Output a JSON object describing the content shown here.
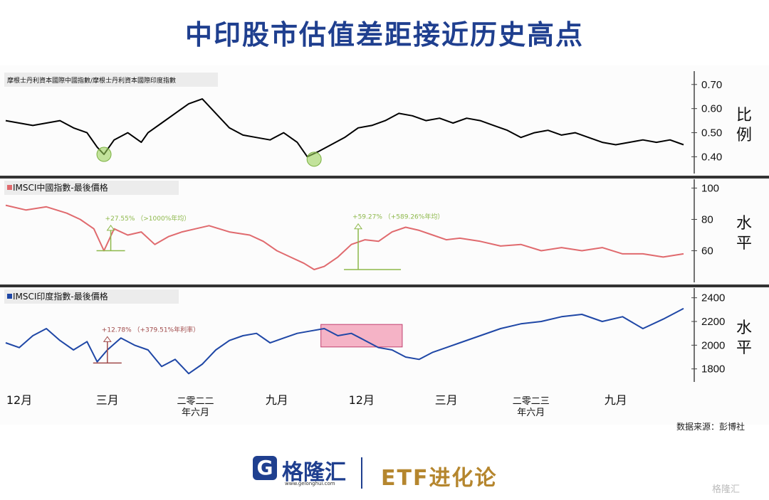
{
  "title": "中印股市估值差距接近历史高点",
  "source": "数据来源：彭博社",
  "footer": {
    "logo_glyph": "G",
    "logo_text": "格隆汇",
    "logo_url": "www.gelonghui.com",
    "etf_text": "ETF进化论",
    "watermark": "格隆汇"
  },
  "colors": {
    "title": "#1f3f8f",
    "ratio": "#000000",
    "china": "#e06a6e",
    "india": "#1f47a6",
    "highlight": "#f2a0b8",
    "marker": "#9bd05a",
    "anno_green": "#8db84a",
    "anno_red": "#a04a4a"
  },
  "chart_data": [
    {
      "type": "line",
      "title": "摩根士丹利資本國際中國指數/摩根士丹利資本國際印度指數",
      "ylabel": "比例",
      "ylim": [
        0.36,
        0.72
      ],
      "yticks": [
        "0.40",
        "0.50",
        "0.60",
        "0.70"
      ],
      "xlim": [
        0,
        100
      ],
      "series": [
        {
          "color": "#000000",
          "x": [
            0,
            4,
            8,
            10,
            12,
            13.5,
            14.5,
            16,
            18,
            20,
            21,
            23,
            25,
            27,
            29,
            31,
            33,
            35,
            37,
            39,
            41,
            43,
            44.5,
            46,
            48,
            50,
            52,
            54,
            56,
            58,
            60,
            62,
            64,
            66,
            68,
            70,
            72,
            74,
            76,
            78,
            80,
            82,
            84,
            86,
            88,
            90,
            92,
            94,
            96,
            98,
            100
          ],
          "y": [
            0.55,
            0.53,
            0.55,
            0.52,
            0.5,
            0.44,
            0.41,
            0.47,
            0.5,
            0.46,
            0.5,
            0.54,
            0.58,
            0.62,
            0.64,
            0.58,
            0.52,
            0.49,
            0.48,
            0.47,
            0.5,
            0.46,
            0.4,
            0.42,
            0.45,
            0.48,
            0.52,
            0.53,
            0.55,
            0.58,
            0.57,
            0.55,
            0.56,
            0.54,
            0.56,
            0.55,
            0.53,
            0.51,
            0.48,
            0.5,
            0.51,
            0.49,
            0.5,
            0.48,
            0.46,
            0.45,
            0.46,
            0.47,
            0.46,
            0.47,
            0.45
          ]
        }
      ],
      "markers": [
        {
          "x": 14.5,
          "y": 0.41
        },
        {
          "x": 45.5,
          "y": 0.39
        }
      ]
    },
    {
      "type": "line",
      "title": "IMSCI中國指數-最後價格",
      "ylabel": "水平",
      "ylim": [
        43,
        102
      ],
      "yticks": [
        "60",
        "80",
        "100"
      ],
      "xlim": [
        0,
        100
      ],
      "series": [
        {
          "color": "#e06a6e",
          "x": [
            0,
            3,
            6,
            9,
            11,
            13,
            14.5,
            16,
            18,
            20,
            22,
            24,
            26,
            28,
            30,
            33,
            36,
            38,
            40,
            42,
            44,
            45.5,
            47,
            49,
            51,
            53,
            55,
            57,
            59,
            61,
            63,
            65,
            67,
            70,
            73,
            76,
            79,
            82,
            85,
            88,
            91,
            94,
            97,
            100
          ],
          "y": [
            89,
            86,
            88,
            84,
            80,
            74,
            60,
            74,
            70,
            72,
            64,
            69,
            72,
            74,
            76,
            72,
            70,
            66,
            60,
            56,
            52,
            48,
            50,
            56,
            64,
            67,
            66,
            72,
            75,
            73,
            70,
            67,
            68,
            66,
            63,
            64,
            60,
            62,
            60,
            62,
            58,
            58,
            56,
            58
          ]
        }
      ],
      "annotations": [
        {
          "text": "+27.55%",
          "note": "（>1000%年均）",
          "x": 15.5,
          "y_from": 60,
          "y_to": 73
        },
        {
          "text": "+59.27%",
          "note": "（+589.26%年均）",
          "x": 52,
          "y_from": 48,
          "y_to": 74
        }
      ]
    },
    {
      "type": "line",
      "title": "IMSCI印度指數-最後價格",
      "ylabel": "水平",
      "ylim": [
        1720,
        2440
      ],
      "yticks": [
        "1800",
        "2000",
        "2200",
        "2400"
      ],
      "xlim": [
        0,
        100
      ],
      "series": [
        {
          "color": "#1f47a6",
          "x": [
            0,
            2,
            4,
            6,
            8,
            10,
            12,
            13.5,
            15,
            17,
            19,
            21,
            23,
            25,
            27,
            29,
            31,
            33,
            35,
            37,
            39,
            41,
            43,
            45,
            47,
            49,
            51,
            53,
            55,
            57,
            59,
            61,
            63,
            65,
            67,
            70,
            73,
            76,
            79,
            82,
            85,
            88,
            91,
            94,
            97,
            100
          ],
          "y": [
            2020,
            1980,
            2080,
            2140,
            2040,
            1960,
            2030,
            1860,
            1960,
            2060,
            2000,
            1960,
            1820,
            1880,
            1760,
            1840,
            1960,
            2040,
            2080,
            2100,
            2020,
            2060,
            2100,
            2120,
            2140,
            2080,
            2100,
            2040,
            1980,
            1960,
            1900,
            1880,
            1940,
            1980,
            2020,
            2080,
            2140,
            2180,
            2200,
            2240,
            2260,
            2200,
            2240,
            2140,
            2220,
            2310
          ]
        }
      ],
      "highlight_x": [
        46.5,
        58.5
      ],
      "annotations": [
        {
          "text": "+12.78%",
          "note": "（+379.51%年利率）",
          "x": 15,
          "y_from": 1850,
          "y_to": 2030
        }
      ]
    }
  ],
  "x_labels": [
    {
      "x": 2,
      "line1": "12月",
      "line2": ""
    },
    {
      "x": 15,
      "line1": "三月",
      "line2": ""
    },
    {
      "x": 28,
      "line1": "二零二二",
      "line2": "年六月"
    },
    {
      "x": 40,
      "line1": "九月",
      "line2": ""
    },
    {
      "x": 52.5,
      "line1": "12月",
      "line2": ""
    },
    {
      "x": 65,
      "line1": "三月",
      "line2": ""
    },
    {
      "x": 77.5,
      "line1": "二零二三",
      "line2": "年六月"
    },
    {
      "x": 90,
      "line1": "九月",
      "line2": ""
    }
  ]
}
